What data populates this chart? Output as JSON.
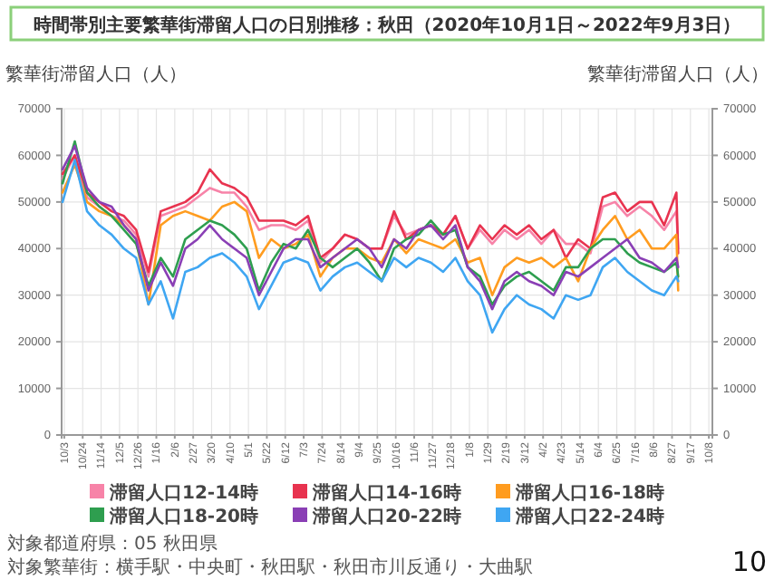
{
  "chart_data": {
    "type": "line",
    "title": "時間帯別主要繁華街滞留人口の日別推移：秋田（2020年10月1日～2022年9月3日）",
    "ylabel": "繁華街滞留人口（人）",
    "y2label": "繁華街滞留人口（人）",
    "annotations": [
      "対象都道府県：05 秋田県",
      "対象繁華街：横手駅・中央町・秋田駅・秋田市川反通り・大曲駅",
      "10"
    ],
    "x": [
      "2020-10-01",
      "2020-10-15",
      "2020-10-29",
      "2020-11-12",
      "2020-11-26",
      "2020-12-10",
      "2020-12-24",
      "2021-01-07",
      "2021-01-21",
      "2021-02-04",
      "2021-02-18",
      "2021-03-04",
      "2021-03-18",
      "2021-04-01",
      "2021-04-15",
      "2021-04-29",
      "2021-05-13",
      "2021-05-27",
      "2021-06-10",
      "2021-06-24",
      "2021-07-08",
      "2021-07-22",
      "2021-08-05",
      "2021-08-19",
      "2021-09-02",
      "2021-09-16",
      "2021-09-30",
      "2021-10-14",
      "2021-10-28",
      "2021-11-11",
      "2021-11-25",
      "2021-12-09",
      "2021-12-23",
      "2022-01-06",
      "2022-01-20",
      "2022-02-03",
      "2022-02-17",
      "2022-03-03",
      "2022-03-17",
      "2022-03-31",
      "2022-04-14",
      "2022-04-28",
      "2022-05-12",
      "2022-05-26",
      "2022-06-09",
      "2022-06-23",
      "2022-07-07",
      "2022-07-21",
      "2022-08-04",
      "2022-08-18",
      "2022-09-01",
      "2022-09-03"
    ],
    "series": [
      {
        "name": "滞留人口12-14時",
        "color": "#f783a8",
        "values": [
          55000,
          60000,
          51000,
          49000,
          47000,
          46000,
          43000,
          34000,
          47000,
          48000,
          49000,
          51000,
          53000,
          52000,
          52000,
          49000,
          44000,
          45000,
          45000,
          44000,
          46000,
          37000,
          40000,
          43000,
          42000,
          40000,
          40000,
          47000,
          43000,
          44000,
          45000,
          43000,
          47000,
          40000,
          44000,
          41000,
          44000,
          42000,
          44000,
          41000,
          44000,
          41000,
          41000,
          39000,
          49000,
          50000,
          47000,
          49000,
          47000,
          44000,
          48000,
          40000
        ]
      },
      {
        "name": "滞留人口14-16時",
        "color": "#e8334f",
        "values": [
          56000,
          60000,
          52000,
          50000,
          48000,
          47000,
          44000,
          35000,
          48000,
          49000,
          50000,
          52000,
          57000,
          54000,
          53000,
          51000,
          46000,
          46000,
          46000,
          45000,
          47000,
          38000,
          40000,
          43000,
          42000,
          40000,
          40000,
          48000,
          42000,
          44000,
          45000,
          43000,
          47000,
          40000,
          45000,
          42000,
          45000,
          43000,
          45000,
          42000,
          44000,
          38000,
          42000,
          40000,
          51000,
          52000,
          48000,
          50000,
          50000,
          45000,
          52000,
          39000
        ]
      },
      {
        "name": "滞留人口16-18時",
        "color": "#ff9c1f",
        "values": [
          52000,
          58000,
          50000,
          48000,
          47000,
          45000,
          42000,
          28000,
          45000,
          47000,
          48000,
          47000,
          46000,
          49000,
          50000,
          48000,
          38000,
          42000,
          40000,
          41000,
          43000,
          34000,
          38000,
          40000,
          40000,
          38000,
          37000,
          42000,
          39000,
          42000,
          41000,
          40000,
          42000,
          37000,
          38000,
          30000,
          36000,
          38000,
          37000,
          38000,
          36000,
          38000,
          33000,
          40000,
          44000,
          47000,
          42000,
          44000,
          40000,
          40000,
          43000,
          31000
        ]
      },
      {
        "name": "滞留人口18-20時",
        "color": "#2e9e4f",
        "values": [
          54000,
          63000,
          52000,
          49000,
          47000,
          44000,
          41000,
          32000,
          38000,
          34000,
          42000,
          44000,
          46000,
          45000,
          43000,
          40000,
          31000,
          37000,
          41000,
          40000,
          44000,
          38000,
          36000,
          38000,
          40000,
          37000,
          33000,
          40000,
          42000,
          43000,
          46000,
          43000,
          44000,
          36000,
          34000,
          28000,
          32000,
          34000,
          35000,
          33000,
          31000,
          36000,
          36000,
          40000,
          42000,
          42000,
          39000,
          37000,
          36000,
          35000,
          37000,
          34000
        ]
      },
      {
        "name": "滞留人口20-22時",
        "color": "#8a3fb5",
        "values": [
          57000,
          62000,
          53000,
          50000,
          49000,
          45000,
          42000,
          31000,
          37000,
          32000,
          40000,
          42000,
          45000,
          42000,
          40000,
          38000,
          30000,
          35000,
          40000,
          42000,
          42000,
          36000,
          38000,
          40000,
          42000,
          40000,
          36000,
          42000,
          40000,
          44000,
          45000,
          42000,
          45000,
          36000,
          33000,
          27000,
          33000,
          35000,
          33000,
          32000,
          30000,
          35000,
          34000,
          36000,
          38000,
          40000,
          42000,
          38000,
          37000,
          35000,
          38000,
          36000
        ]
      },
      {
        "name": "滞留人口22-24時",
        "color": "#3fa6f2",
        "values": [
          50000,
          59000,
          48000,
          45000,
          43000,
          40000,
          38000,
          28000,
          33000,
          25000,
          35000,
          36000,
          38000,
          39000,
          37000,
          34000,
          27000,
          32000,
          37000,
          38000,
          37000,
          31000,
          34000,
          36000,
          37000,
          35000,
          33000,
          38000,
          36000,
          38000,
          37000,
          35000,
          38000,
          33000,
          30000,
          22000,
          27000,
          30000,
          28000,
          27000,
          25000,
          30000,
          29000,
          30000,
          36000,
          38000,
          35000,
          33000,
          31000,
          30000,
          34000,
          33000
        ]
      }
    ],
    "xlim": [
      "2020-09-30",
      "2022-10-12"
    ],
    "xticks": [
      {
        "value": "2020-10-03",
        "label": "10/3"
      },
      {
        "value": "2020-10-24",
        "label": "10/24"
      },
      {
        "value": "2020-11-14",
        "label": "11/14"
      },
      {
        "value": "2020-12-05",
        "label": "12/5"
      },
      {
        "value": "2020-12-26",
        "label": "12/26"
      },
      {
        "value": "2021-01-16",
        "label": "1/16"
      },
      {
        "value": "2021-02-06",
        "label": "2/6"
      },
      {
        "value": "2021-02-27",
        "label": "2/27"
      },
      {
        "value": "2021-03-20",
        "label": "3/20"
      },
      {
        "value": "2021-04-10",
        "label": "4/10"
      },
      {
        "value": "2021-05-01",
        "label": "5/1"
      },
      {
        "value": "2021-05-22",
        "label": "5/22"
      },
      {
        "value": "2021-06-12",
        "label": "6/12"
      },
      {
        "value": "2021-07-03",
        "label": "7/3"
      },
      {
        "value": "2021-07-24",
        "label": "7/24"
      },
      {
        "value": "2021-08-14",
        "label": "8/14"
      },
      {
        "value": "2021-09-04",
        "label": "9/4"
      },
      {
        "value": "2021-09-25",
        "label": "9/25"
      },
      {
        "value": "2021-10-16",
        "label": "10/16"
      },
      {
        "value": "2021-11-06",
        "label": "11/6"
      },
      {
        "value": "2021-11-27",
        "label": "11/27"
      },
      {
        "value": "2021-12-18",
        "label": "12/18"
      },
      {
        "value": "2022-01-08",
        "label": "1/8"
      },
      {
        "value": "2022-01-29",
        "label": "1/29"
      },
      {
        "value": "2022-02-19",
        "label": "2/19"
      },
      {
        "value": "2022-03-12",
        "label": "3/12"
      },
      {
        "value": "2022-04-02",
        "label": "4/2"
      },
      {
        "value": "2022-04-23",
        "label": "4/23"
      },
      {
        "value": "2022-05-14",
        "label": "5/14"
      },
      {
        "value": "2022-06-04",
        "label": "6/4"
      },
      {
        "value": "2022-06-25",
        "label": "6/25"
      },
      {
        "value": "2022-07-16",
        "label": "7/16"
      },
      {
        "value": "2022-08-06",
        "label": "8/6"
      },
      {
        "value": "2022-08-27",
        "label": "8/27"
      },
      {
        "value": "2022-09-17",
        "label": "9/17"
      },
      {
        "value": "2022-10-08",
        "label": "10/8"
      }
    ],
    "ylim": [
      0,
      70000
    ],
    "yticks": [
      0,
      10000,
      20000,
      30000,
      40000,
      50000,
      60000,
      70000
    ],
    "y2lim": [
      0,
      70000
    ],
    "y2ticks": [
      0,
      10000,
      20000,
      30000,
      40000,
      50000,
      60000,
      70000
    ],
    "grid": true,
    "legend": "bottom"
  }
}
